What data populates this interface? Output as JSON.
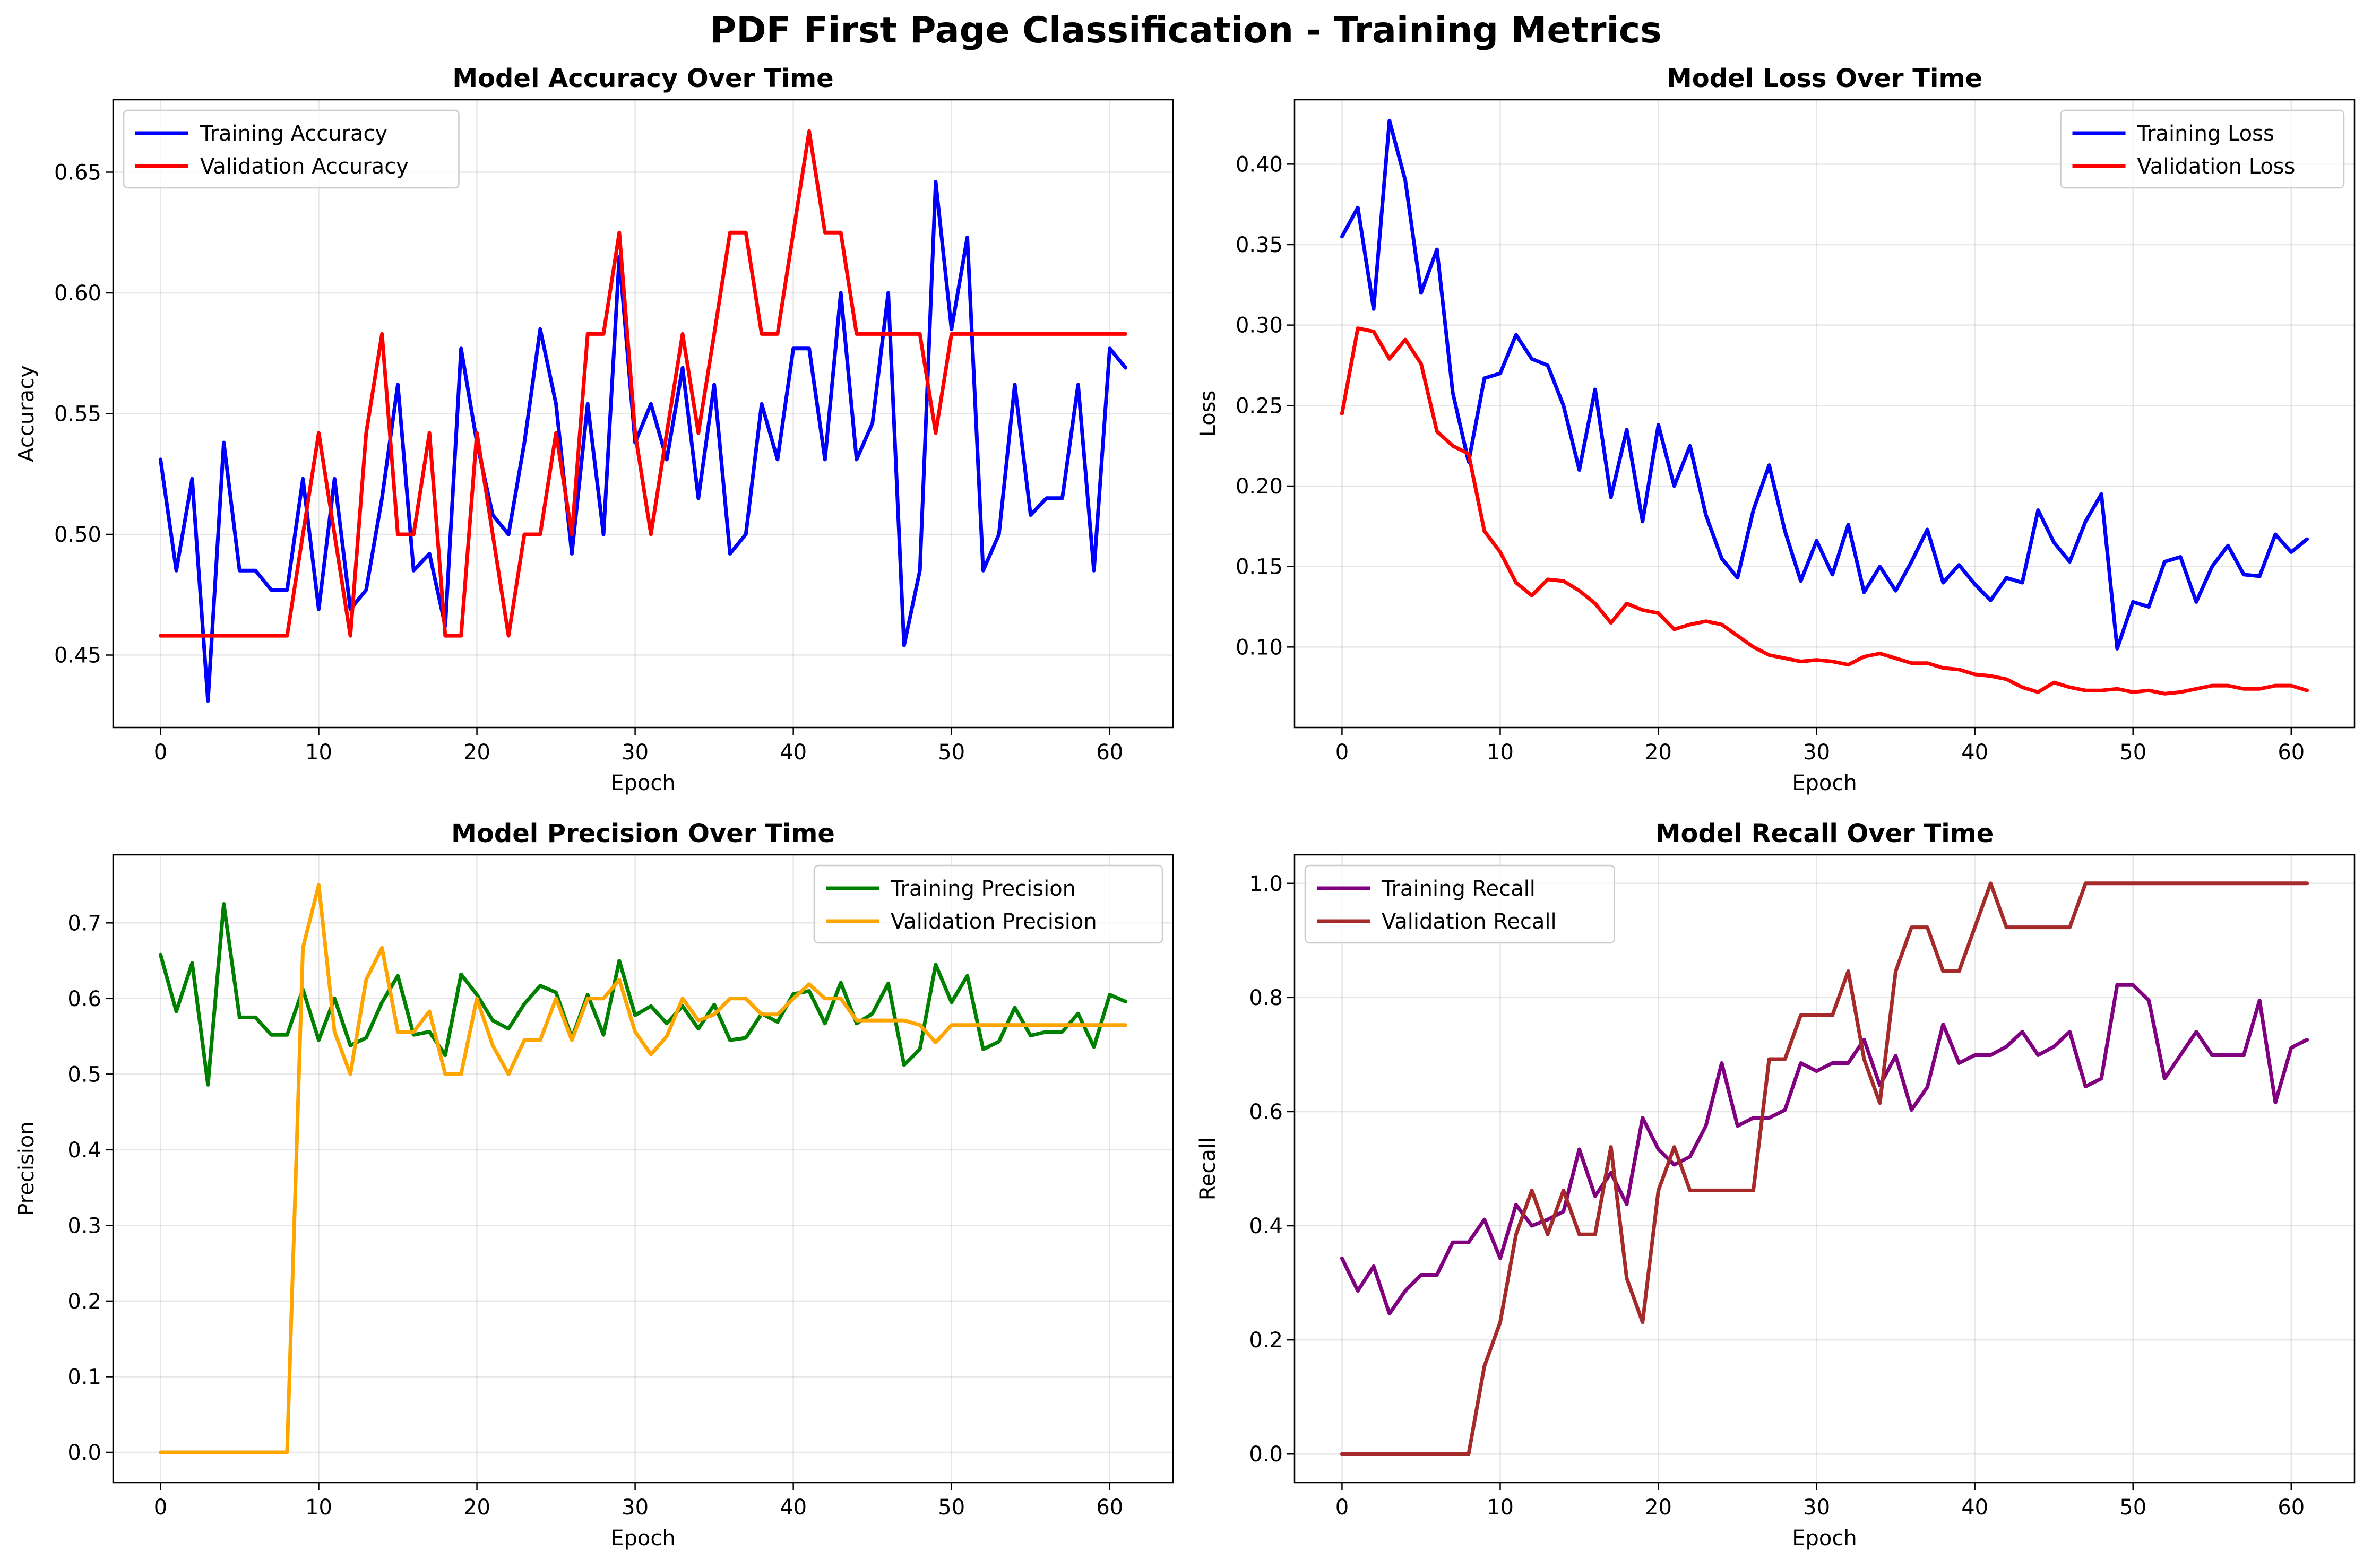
{
  "figure": {
    "title": "PDF First Page Classification - Training Metrics"
  },
  "chart_data": [
    {
      "type": "line",
      "title": "Model Accuracy Over Time",
      "xlabel": "Epoch",
      "ylabel": "Accuracy",
      "xlim": [
        -3,
        64
      ],
      "ylim": [
        0.42,
        0.68
      ],
      "xticks": [
        0,
        10,
        20,
        30,
        40,
        50,
        60
      ],
      "yticks": [
        0.45,
        0.5,
        0.55,
        0.6,
        0.65
      ],
      "ytick_labels": [
        "0.45",
        "0.50",
        "0.55",
        "0.60",
        "0.65"
      ],
      "grid": true,
      "legend_position": "upper left",
      "series": [
        {
          "name": "Training Accuracy",
          "color": "#0000ff",
          "values": [
            0.531,
            0.485,
            0.523,
            0.431,
            0.538,
            0.485,
            0.485,
            0.477,
            0.477,
            0.523,
            0.469,
            0.523,
            0.469,
            0.477,
            0.515,
            0.562,
            0.485,
            0.492,
            0.462,
            0.577,
            0.538,
            0.508,
            0.5,
            0.538,
            0.585,
            0.554,
            0.492,
            0.554,
            0.5,
            0.615,
            0.538,
            0.554,
            0.531,
            0.569,
            0.515,
            0.562,
            0.492,
            0.5,
            0.554,
            0.531,
            0.577,
            0.577,
            0.531,
            0.6,
            0.531,
            0.546,
            0.6,
            0.454,
            0.485,
            0.646,
            0.585,
            0.623,
            0.485,
            0.5,
            0.562,
            0.508,
            0.515,
            0.515,
            0.562,
            0.485,
            0.577,
            0.569
          ]
        },
        {
          "name": "Validation Accuracy",
          "color": "#ff0000",
          "values": [
            0.458,
            0.458,
            0.458,
            0.458,
            0.458,
            0.458,
            0.458,
            0.458,
            0.458,
            0.5,
            0.542,
            0.5,
            0.458,
            0.542,
            0.583,
            0.5,
            0.5,
            0.542,
            0.458,
            0.458,
            0.542,
            0.5,
            0.458,
            0.5,
            0.5,
            0.542,
            0.5,
            0.583,
            0.583,
            0.625,
            0.542,
            0.5,
            0.542,
            0.583,
            0.542,
            0.583,
            0.625,
            0.625,
            0.583,
            0.583,
            0.625,
            0.667,
            0.625,
            0.625,
            0.583,
            0.583,
            0.583,
            0.583,
            0.583,
            0.542,
            0.583,
            0.583,
            0.583,
            0.583,
            0.583,
            0.583,
            0.583,
            0.583,
            0.583,
            0.583,
            0.583,
            0.583
          ]
        }
      ]
    },
    {
      "type": "line",
      "title": "Model Loss Over Time",
      "xlabel": "Epoch",
      "ylabel": "Loss",
      "xlim": [
        -3,
        64
      ],
      "ylim": [
        0.05,
        0.44
      ],
      "xticks": [
        0,
        10,
        20,
        30,
        40,
        50,
        60
      ],
      "yticks": [
        0.1,
        0.15,
        0.2,
        0.25,
        0.3,
        0.35,
        0.4
      ],
      "ytick_labels": [
        "0.10",
        "0.15",
        "0.20",
        "0.25",
        "0.30",
        "0.35",
        "0.40"
      ],
      "grid": true,
      "legend_position": "upper right",
      "series": [
        {
          "name": "Training Loss",
          "color": "#0000ff",
          "values": [
            0.355,
            0.373,
            0.31,
            0.427,
            0.39,
            0.32,
            0.347,
            0.258,
            0.215,
            0.267,
            0.27,
            0.294,
            0.279,
            0.275,
            0.25,
            0.21,
            0.26,
            0.193,
            0.235,
            0.178,
            0.238,
            0.2,
            0.225,
            0.182,
            0.155,
            0.143,
            0.185,
            0.213,
            0.172,
            0.141,
            0.166,
            0.145,
            0.176,
            0.134,
            0.15,
            0.135,
            0.153,
            0.173,
            0.14,
            0.151,
            0.139,
            0.129,
            0.143,
            0.14,
            0.185,
            0.165,
            0.153,
            0.178,
            0.195,
            0.099,
            0.128,
            0.125,
            0.153,
            0.156,
            0.128,
            0.15,
            0.163,
            0.145,
            0.144,
            0.17,
            0.159,
            0.167
          ]
        },
        {
          "name": "Validation Loss",
          "color": "#ff0000",
          "values": [
            0.245,
            0.298,
            0.296,
            0.279,
            0.291,
            0.276,
            0.234,
            0.225,
            0.22,
            0.172,
            0.159,
            0.14,
            0.132,
            0.142,
            0.141,
            0.135,
            0.127,
            0.115,
            0.127,
            0.123,
            0.121,
            0.111,
            0.114,
            0.116,
            0.114,
            0.107,
            0.1,
            0.095,
            0.093,
            0.091,
            0.092,
            0.091,
            0.089,
            0.094,
            0.096,
            0.093,
            0.09,
            0.09,
            0.087,
            0.086,
            0.083,
            0.082,
            0.08,
            0.075,
            0.072,
            0.078,
            0.075,
            0.073,
            0.073,
            0.074,
            0.072,
            0.073,
            0.071,
            0.072,
            0.074,
            0.076,
            0.076,
            0.074,
            0.074,
            0.076,
            0.076,
            0.073
          ]
        }
      ]
    },
    {
      "type": "line",
      "title": "Model Precision Over Time",
      "xlabel": "Epoch",
      "ylabel": "Precision",
      "xlim": [
        -3,
        64
      ],
      "ylim": [
        -0.04,
        0.79
      ],
      "xticks": [
        0,
        10,
        20,
        30,
        40,
        50,
        60
      ],
      "yticks": [
        0.0,
        0.1,
        0.2,
        0.3,
        0.4,
        0.5,
        0.6,
        0.7
      ],
      "ytick_labels": [
        "0.0",
        "0.1",
        "0.2",
        "0.3",
        "0.4",
        "0.5",
        "0.6",
        "0.7"
      ],
      "grid": true,
      "legend_position": "upper right",
      "series": [
        {
          "name": "Training Precision",
          "color": "#008000",
          "values": [
            0.658,
            0.583,
            0.647,
            0.486,
            0.725,
            0.575,
            0.575,
            0.552,
            0.552,
            0.612,
            0.545,
            0.6,
            0.538,
            0.548,
            0.595,
            0.63,
            0.552,
            0.556,
            0.525,
            0.632,
            0.605,
            0.571,
            0.56,
            0.593,
            0.617,
            0.608,
            0.548,
            0.605,
            0.552,
            0.65,
            0.578,
            0.59,
            0.567,
            0.59,
            0.56,
            0.592,
            0.545,
            0.548,
            0.58,
            0.569,
            0.606,
            0.61,
            0.567,
            0.621,
            0.567,
            0.58,
            0.62,
            0.512,
            0.533,
            0.645,
            0.595,
            0.63,
            0.533,
            0.543,
            0.588,
            0.551,
            0.556,
            0.556,
            0.58,
            0.536,
            0.605,
            0.596
          ]
        },
        {
          "name": "Validation Precision",
          "color": "#ffa500",
          "values": [
            0.0,
            0.0,
            0.0,
            0.0,
            0.0,
            0.0,
            0.0,
            0.0,
            0.0,
            0.667,
            0.75,
            0.556,
            0.5,
            0.625,
            0.667,
            0.556,
            0.556,
            0.583,
            0.5,
            0.5,
            0.6,
            0.538,
            0.5,
            0.545,
            0.545,
            0.6,
            0.545,
            0.6,
            0.6,
            0.625,
            0.556,
            0.526,
            0.55,
            0.6,
            0.571,
            0.579,
            0.6,
            0.6,
            0.579,
            0.579,
            0.6,
            0.619,
            0.6,
            0.6,
            0.571,
            0.571,
            0.571,
            0.571,
            0.565,
            0.542,
            0.565,
            0.565,
            0.565,
            0.565,
            0.565,
            0.565,
            0.565,
            0.565,
            0.565,
            0.565,
            0.565,
            0.565
          ]
        }
      ]
    },
    {
      "type": "line",
      "title": "Model Recall Over Time",
      "xlabel": "Epoch",
      "ylabel": "Recall",
      "xlim": [
        -3,
        64
      ],
      "ylim": [
        -0.05,
        1.05
      ],
      "xticks": [
        0,
        10,
        20,
        30,
        40,
        50,
        60
      ],
      "yticks": [
        0.0,
        0.2,
        0.4,
        0.6,
        0.8,
        1.0
      ],
      "ytick_labels": [
        "0.0",
        "0.2",
        "0.4",
        "0.6",
        "0.8",
        "1.0"
      ],
      "grid": true,
      "legend_position": "upper left",
      "series": [
        {
          "name": "Training Recall",
          "color": "#800080",
          "values": [
            0.343,
            0.286,
            0.329,
            0.246,
            0.286,
            0.314,
            0.314,
            0.371,
            0.371,
            0.411,
            0.343,
            0.437,
            0.4,
            0.411,
            0.425,
            0.534,
            0.452,
            0.493,
            0.438,
            0.589,
            0.534,
            0.507,
            0.521,
            0.575,
            0.685,
            0.575,
            0.589,
            0.589,
            0.603,
            0.685,
            0.671,
            0.685,
            0.685,
            0.726,
            0.646,
            0.698,
            0.603,
            0.643,
            0.753,
            0.685,
            0.699,
            0.699,
            0.714,
            0.74,
            0.699,
            0.714,
            0.74,
            0.644,
            0.658,
            0.822,
            0.822,
            0.795,
            0.658,
            0.699,
            0.74,
            0.699,
            0.699,
            0.699,
            0.795,
            0.616,
            0.712,
            0.726
          ]
        },
        {
          "name": "Validation Recall",
          "color": "#a52a2a",
          "values": [
            0.0,
            0.0,
            0.0,
            0.0,
            0.0,
            0.0,
            0.0,
            0.0,
            0.0,
            0.154,
            0.231,
            0.385,
            0.462,
            0.385,
            0.462,
            0.385,
            0.385,
            0.538,
            0.308,
            0.231,
            0.462,
            0.538,
            0.462,
            0.462,
            0.462,
            0.462,
            0.462,
            0.692,
            0.692,
            0.769,
            0.769,
            0.769,
            0.846,
            0.692,
            0.615,
            0.846,
            0.923,
            0.923,
            0.846,
            0.846,
            0.923,
            1.0,
            0.923,
            0.923,
            0.923,
            0.923,
            0.923,
            1.0,
            1.0,
            1.0,
            1.0,
            1.0,
            1.0,
            1.0,
            1.0,
            1.0,
            1.0,
            1.0,
            1.0,
            1.0,
            1.0,
            1.0
          ]
        }
      ]
    }
  ]
}
